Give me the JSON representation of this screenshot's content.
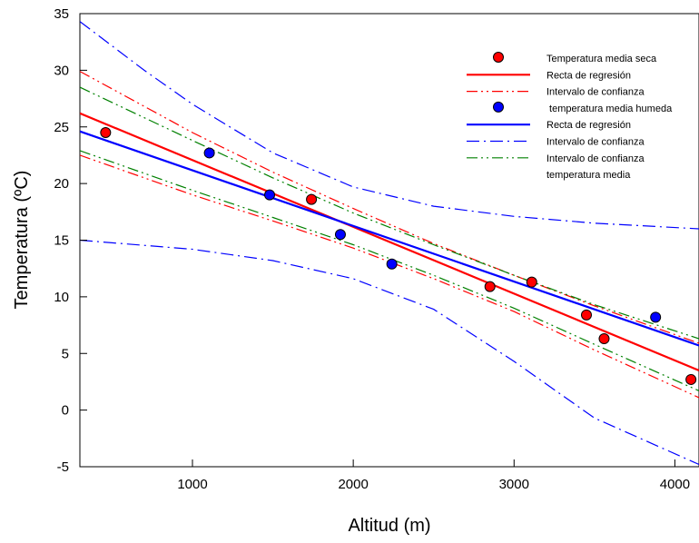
{
  "chart_data": {
    "type": "scatter",
    "title": "",
    "xlabel": "Altitud (m)",
    "ylabel": "Temperatura (ºC)",
    "xlim": [
      300,
      4150
    ],
    "ylim": [
      -5,
      35
    ],
    "x_ticks": [
      1000,
      2000,
      3000,
      4000
    ],
    "y_ticks": [
      -5,
      0,
      5,
      10,
      15,
      20,
      25,
      30,
      35
    ],
    "grid": false,
    "legend_position": "top-right",
    "series": [
      {
        "name": "Temperatura media seca",
        "kind": "points",
        "color": "#ff0000",
        "points": [
          {
            "x": 460,
            "y": 24.5
          },
          {
            "x": 1740,
            "y": 18.6
          },
          {
            "x": 2850,
            "y": 10.9
          },
          {
            "x": 3110,
            "y": 11.3
          },
          {
            "x": 3450,
            "y": 8.4
          },
          {
            "x": 3560,
            "y": 6.3
          },
          {
            "x": 4100,
            "y": 2.7
          }
        ]
      },
      {
        "name": "Recta de regresión",
        "kind": "line",
        "style": "solid",
        "color": "#ff0000",
        "points": [
          {
            "x": 300,
            "y": 26.2
          },
          {
            "x": 4150,
            "y": 3.5
          }
        ]
      },
      {
        "name": "Intervalo de confianza",
        "kind": "line",
        "style": "dash-dot-dot",
        "color": "#ff0000",
        "points": [
          {
            "x": 300,
            "y": 29.9
          },
          {
            "x": 1000,
            "y": 24.5
          },
          {
            "x": 1500,
            "y": 21.0
          },
          {
            "x": 2000,
            "y": 17.8
          },
          {
            "x": 2500,
            "y": 14.7
          },
          {
            "x": 3000,
            "y": 11.9
          },
          {
            "x": 3500,
            "y": 9.2
          },
          {
            "x": 4150,
            "y": 5.9
          }
        ]
      },
      {
        "name": "Intervalo de confianza",
        "kind": "line",
        "style": "dash-dot-dot",
        "color": "#ff0000",
        "points": [
          {
            "x": 300,
            "y": 22.5
          },
          {
            "x": 1000,
            "y": 19.0
          },
          {
            "x": 1500,
            "y": 16.7
          },
          {
            "x": 2000,
            "y": 14.3
          },
          {
            "x": 2500,
            "y": 11.6
          },
          {
            "x": 3000,
            "y": 8.7
          },
          {
            "x": 3500,
            "y": 5.3
          },
          {
            "x": 4150,
            "y": 1.1
          }
        ]
      },
      {
        "name": "temperatura media humeda",
        "kind": "points",
        "color": "#0000ff",
        "points": [
          {
            "x": 1105,
            "y": 22.7
          },
          {
            "x": 1480,
            "y": 19.0
          },
          {
            "x": 1920,
            "y": 15.5
          },
          {
            "x": 2240,
            "y": 12.9
          },
          {
            "x": 3880,
            "y": 8.2
          }
        ]
      },
      {
        "name": "Recta de regresión",
        "kind": "line",
        "style": "solid",
        "color": "#0000ff",
        "points": [
          {
            "x": 300,
            "y": 24.6
          },
          {
            "x": 4150,
            "y": 5.7
          }
        ]
      },
      {
        "name": "Intervalo de confianza",
        "kind": "line",
        "style": "dash-dot",
        "color": "#0000ff",
        "points": [
          {
            "x": 300,
            "y": 34.3
          },
          {
            "x": 700,
            "y": 30.0
          },
          {
            "x": 1000,
            "y": 27.0
          },
          {
            "x": 1500,
            "y": 22.7
          },
          {
            "x": 2000,
            "y": 19.7
          },
          {
            "x": 2500,
            "y": 18.0
          },
          {
            "x": 3000,
            "y": 17.1
          },
          {
            "x": 3500,
            "y": 16.5
          },
          {
            "x": 4150,
            "y": 16.0
          }
        ]
      },
      {
        "name": "Intervalo de confianza",
        "kind": "line",
        "style": "dash-dot",
        "color": "#0000ff",
        "points": [
          {
            "x": 300,
            "y": 15.0
          },
          {
            "x": 1000,
            "y": 14.2
          },
          {
            "x": 1500,
            "y": 13.2
          },
          {
            "x": 2000,
            "y": 11.6
          },
          {
            "x": 2500,
            "y": 8.9
          },
          {
            "x": 3000,
            "y": 4.3
          },
          {
            "x": 3500,
            "y": -0.7
          },
          {
            "x": 4150,
            "y": -4.8
          }
        ]
      },
      {
        "name": "Intervalo de confianza temperatura media",
        "kind": "line",
        "style": "dash-dot-dot",
        "color": "#008000",
        "points": [
          {
            "x": 300,
            "y": 28.5
          },
          {
            "x": 1000,
            "y": 23.8
          },
          {
            "x": 1500,
            "y": 20.5
          },
          {
            "x": 2000,
            "y": 17.4
          },
          {
            "x": 2500,
            "y": 14.6
          },
          {
            "x": 3000,
            "y": 11.9
          },
          {
            "x": 3500,
            "y": 9.3
          },
          {
            "x": 4150,
            "y": 6.3
          }
        ]
      },
      {
        "name": "Intervalo de confianza temperatura media",
        "kind": "line",
        "style": "dash-dot-dot",
        "color": "#008000",
        "points": [
          {
            "x": 300,
            "y": 22.9
          },
          {
            "x": 1000,
            "y": 19.4
          },
          {
            "x": 1500,
            "y": 17.0
          },
          {
            "x": 2000,
            "y": 14.6
          },
          {
            "x": 2500,
            "y": 11.9
          },
          {
            "x": 3000,
            "y": 9.0
          },
          {
            "x": 3500,
            "y": 5.8
          },
          {
            "x": 4150,
            "y": 1.7
          }
        ]
      }
    ],
    "legend": [
      {
        "label": "Temperatura media seca",
        "marker": "point",
        "color": "#ff0000",
        "style": "none"
      },
      {
        "label": "Recta de regresión",
        "marker": "line",
        "color": "#ff0000",
        "style": "solid"
      },
      {
        "label": "Intervalo de confianza",
        "marker": "line",
        "color": "#ff0000",
        "style": "dash-dot-dot"
      },
      {
        "label": " temperatura media humeda",
        "marker": "point",
        "color": "#0000ff",
        "style": "none"
      },
      {
        "label": "Recta de regresión",
        "marker": "line",
        "color": "#0000ff",
        "style": "solid"
      },
      {
        "label": "Intervalo de confianza",
        "marker": "line",
        "color": "#0000ff",
        "style": "dash-dot"
      },
      {
        "label": "Intervalo de confianza",
        "marker": "line",
        "color": "#008000",
        "style": "dash-dot-dot"
      },
      {
        "label": "temperatura media",
        "marker": "none",
        "color": "#008000",
        "style": "none"
      }
    ]
  }
}
